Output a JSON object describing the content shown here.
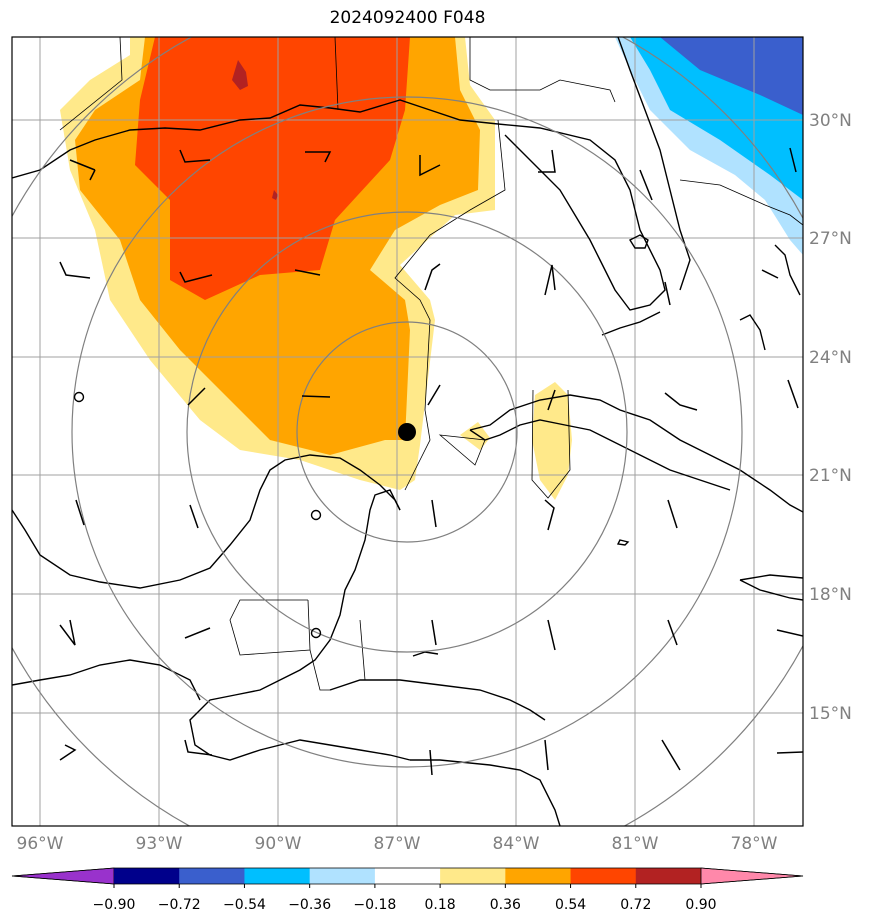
{
  "title": "2024092400 F048",
  "lat_labels": [
    "30°N",
    "27°N",
    "24°N",
    "21°N",
    "18°N",
    "15°N"
  ],
  "lon_labels": [
    "96°W",
    "93°W",
    "90°W",
    "87°W",
    "84°W",
    "81°W",
    "78°W"
  ],
  "colorbar": {
    "ticks": [
      "−0.90",
      "−0.72",
      "−0.54",
      "−0.36",
      "−0.18",
      "0.18",
      "0.36",
      "0.54",
      "0.72",
      "0.90"
    ],
    "colors": [
      "#9932cc",
      "#00008b",
      "#3a5fcd",
      "#00bfff",
      "#b0e2ff",
      "#ffffff",
      "#ffe98a",
      "#ffa500",
      "#ff4500",
      "#b22222",
      "#ff88aa"
    ]
  },
  "storm_center": {
    "lon": "86.7°W",
    "lat": "22.1°N"
  },
  "colors": {
    "grid": "#a0a0a0",
    "coast": "#000000",
    "range_rings": "#808080"
  }
}
